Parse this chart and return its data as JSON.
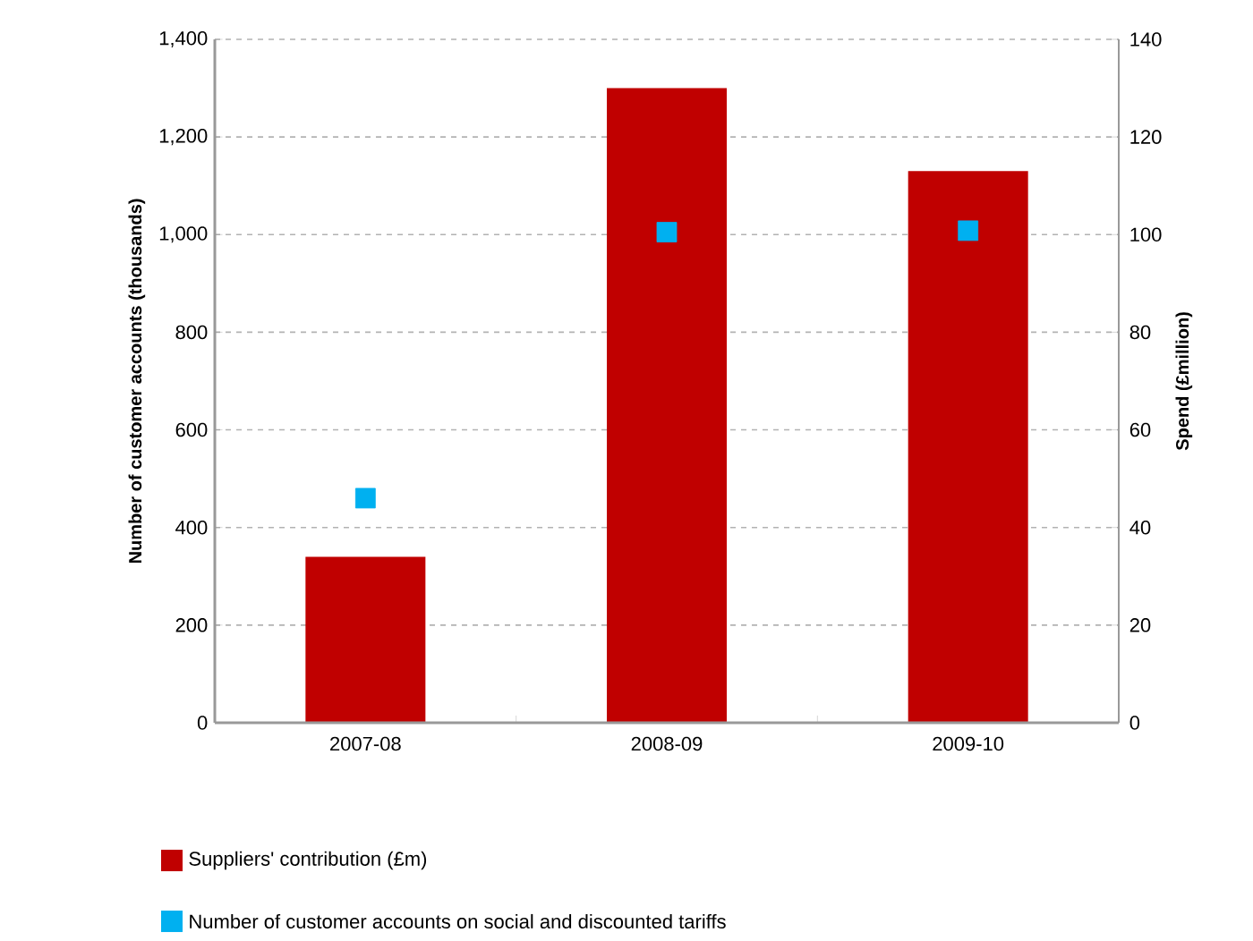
{
  "chart_data": {
    "type": "bar",
    "categories": [
      "2007-08",
      "2008-09",
      "2009-10"
    ],
    "ylabel": "Number of customer accounts (thousands)",
    "y2label": "Spend (£million)",
    "ylim": [
      0,
      1400
    ],
    "yticks": [
      0,
      200,
      400,
      600,
      800,
      {
        "value": 1000,
        "label": "1,000"
      },
      {
        "value": 1200,
        "label": "1,200"
      },
      {
        "value": 1400,
        "label": "1,400"
      }
    ],
    "y2lim": [
      0,
      140
    ],
    "y2ticks": [
      0,
      20,
      40,
      60,
      80,
      100,
      120,
      140
    ],
    "series": [
      {
        "name": "Suppliers' contribution (£m)",
        "axis": "y2",
        "color": "#c00000",
        "values": [
          34,
          130,
          113
        ]
      },
      {
        "name": "Number of customer accounts on social and discounted tariffs",
        "type": "scatter",
        "color": "#00b0f0",
        "values": [
          460,
          1005,
          1008
        ]
      }
    ],
    "marker": "square",
    "grid": "y",
    "legend": "bottom"
  }
}
